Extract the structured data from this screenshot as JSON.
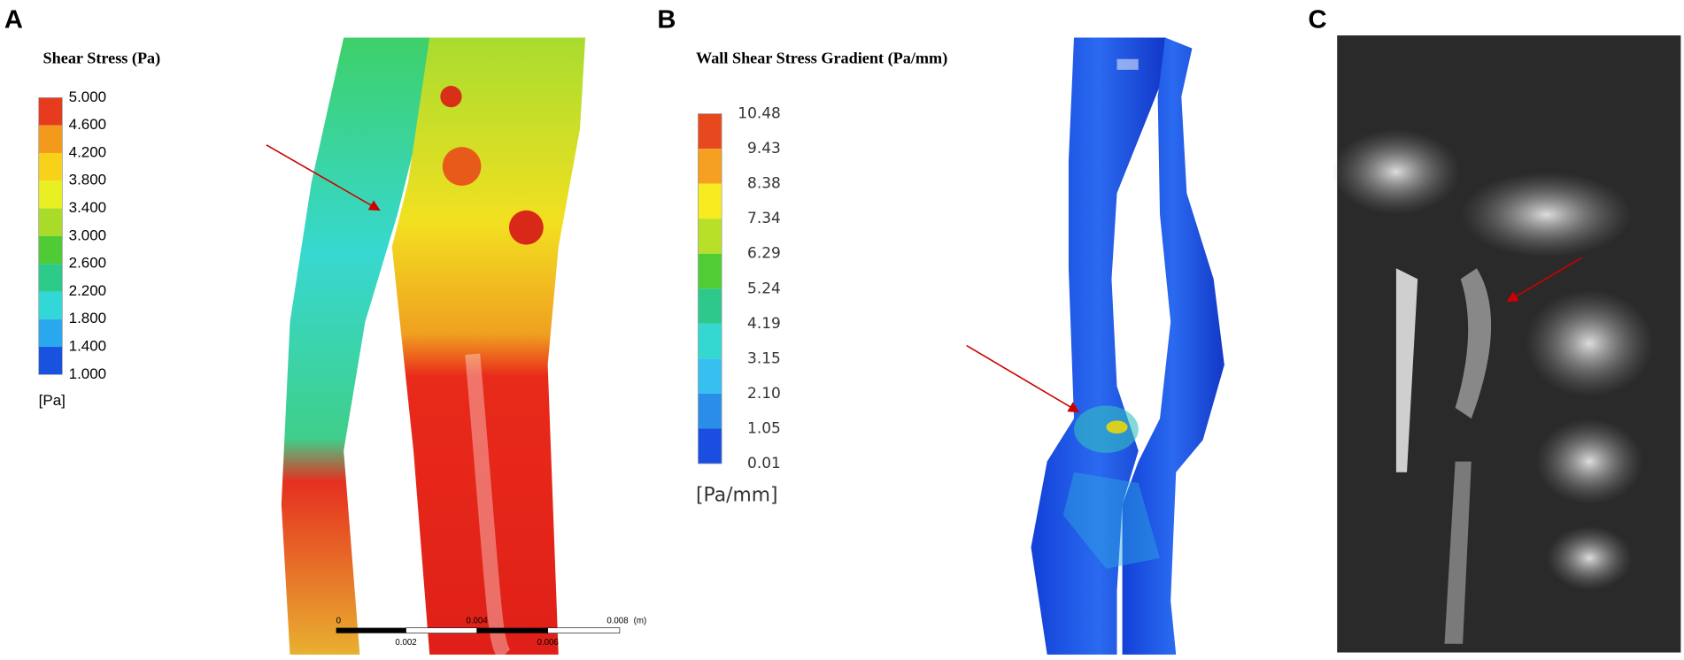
{
  "panels": [
    {
      "label": "A",
      "legend": {
        "title": "Shear Stress (Pa)",
        "ticks": [
          "5.000",
          "4.600",
          "4.200",
          "3.800",
          "3.400",
          "3.000",
          "2.600",
          "2.200",
          "1.800",
          "1.400",
          "1.000"
        ],
        "unit": "[Pa]"
      },
      "scale_bar": {
        "ticks": [
          "0",
          "0.002",
          "0.004",
          "0.006",
          "0.008"
        ],
        "unit": "(m)"
      }
    },
    {
      "label": "B",
      "legend": {
        "title": "Wall Shear Stress Gradient (Pa/mm)",
        "ticks": [
          "10.48",
          "9.43",
          "8.38",
          "7.34",
          "6.29",
          "5.24",
          "4.19",
          "3.15",
          "2.10",
          "1.05",
          "0.01"
        ],
        "unit": "[Pa/mm]"
      }
    },
    {
      "label": "C"
    }
  ]
}
